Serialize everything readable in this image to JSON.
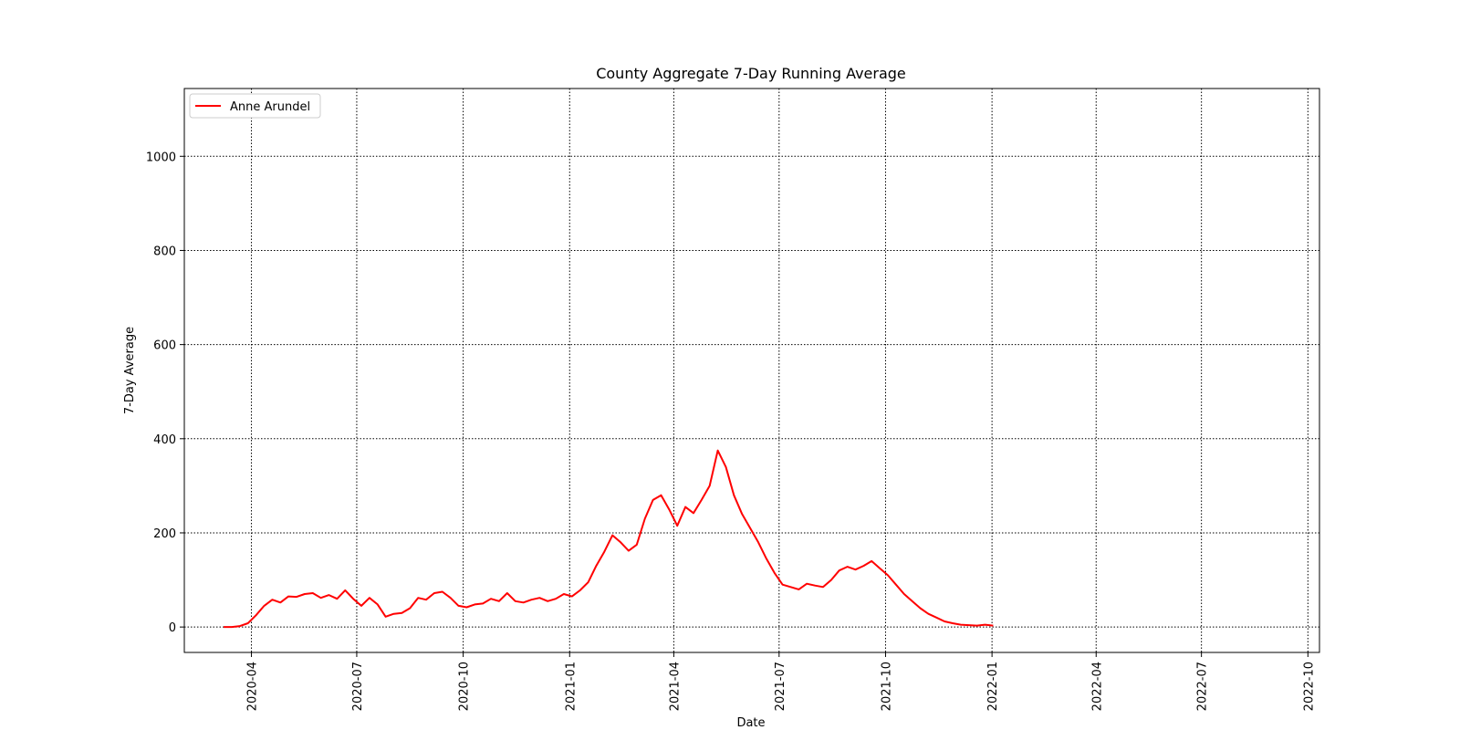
{
  "chart_data": {
    "type": "line",
    "title": "County Aggregate 7-Day Running Average",
    "xlabel": "Date",
    "ylabel": "7-Day Average",
    "xlim": [
      "2020-02-03",
      "2022-10-11"
    ],
    "ylim": [
      -54,
      1144
    ],
    "x_ticks": [
      "2020-04",
      "2020-07",
      "2020-10",
      "2021-01",
      "2021-04",
      "2021-07",
      "2021-10",
      "2022-01",
      "2022-04",
      "2022-07",
      "2022-10"
    ],
    "y_ticks": [
      0,
      200,
      400,
      600,
      800,
      1000
    ],
    "grid": true,
    "legend_position": "upper-left",
    "line_color": "#ff0000",
    "series": [
      {
        "name": "Anne Arundel",
        "color": "#ff0000",
        "points": [
          [
            "2020-03-08",
            0
          ],
          [
            "2020-03-15",
            0
          ],
          [
            "2020-03-22",
            2
          ],
          [
            "2020-03-29",
            8
          ],
          [
            "2020-04-05",
            25
          ],
          [
            "2020-04-12",
            45
          ],
          [
            "2020-04-19",
            58
          ],
          [
            "2020-04-26",
            52
          ],
          [
            "2020-05-03",
            65
          ],
          [
            "2020-05-10",
            64
          ],
          [
            "2020-05-17",
            70
          ],
          [
            "2020-05-24",
            72
          ],
          [
            "2020-05-31",
            62
          ],
          [
            "2020-06-07",
            68
          ],
          [
            "2020-06-14",
            60
          ],
          [
            "2020-06-21",
            78
          ],
          [
            "2020-06-28",
            60
          ],
          [
            "2020-07-05",
            45
          ],
          [
            "2020-07-12",
            62
          ],
          [
            "2020-07-19",
            48
          ],
          [
            "2020-07-26",
            22
          ],
          [
            "2020-08-02",
            28
          ],
          [
            "2020-08-09",
            30
          ],
          [
            "2020-08-16",
            40
          ],
          [
            "2020-08-23",
            62
          ],
          [
            "2020-08-30",
            58
          ],
          [
            "2020-09-06",
            72
          ],
          [
            "2020-09-13",
            75
          ],
          [
            "2020-09-20",
            62
          ],
          [
            "2020-09-27",
            45
          ],
          [
            "2020-10-04",
            42
          ],
          [
            "2020-10-11",
            48
          ],
          [
            "2020-10-18",
            50
          ],
          [
            "2020-10-25",
            60
          ],
          [
            "2020-11-01",
            55
          ],
          [
            "2020-11-08",
            72
          ],
          [
            "2020-11-15",
            55
          ],
          [
            "2020-11-22",
            52
          ],
          [
            "2020-11-29",
            58
          ],
          [
            "2020-12-06",
            62
          ],
          [
            "2020-12-13",
            55
          ],
          [
            "2020-12-20",
            60
          ],
          [
            "2020-12-27",
            70
          ],
          [
            "2021-01-03",
            65
          ],
          [
            "2021-01-10",
            78
          ],
          [
            "2021-01-17",
            95
          ],
          [
            "2021-01-24",
            130
          ],
          [
            "2021-01-31",
            160
          ],
          [
            "2021-02-07",
            195
          ],
          [
            "2021-02-14",
            180
          ],
          [
            "2021-02-21",
            162
          ],
          [
            "2021-02-28",
            175
          ],
          [
            "2021-03-07",
            230
          ],
          [
            "2021-03-14",
            270
          ],
          [
            "2021-03-21",
            280
          ],
          [
            "2021-03-28",
            250
          ],
          [
            "2021-04-04",
            215
          ],
          [
            "2021-04-11",
            255
          ],
          [
            "2021-04-18",
            242
          ],
          [
            "2021-04-25",
            270
          ],
          [
            "2021-05-02",
            300
          ],
          [
            "2021-05-09",
            375
          ],
          [
            "2021-05-16",
            340
          ],
          [
            "2021-05-23",
            280
          ],
          [
            "2021-05-30",
            240
          ],
          [
            "2021-06-06",
            210
          ],
          [
            "2021-06-13",
            180
          ],
          [
            "2021-06-20",
            145
          ],
          [
            "2021-06-27",
            115
          ],
          [
            "2021-07-04",
            90
          ],
          [
            "2021-07-11",
            85
          ],
          [
            "2021-07-18",
            80
          ],
          [
            "2021-07-25",
            92
          ],
          [
            "2021-08-01",
            88
          ],
          [
            "2021-08-08",
            85
          ],
          [
            "2021-08-15",
            100
          ],
          [
            "2021-08-22",
            120
          ],
          [
            "2021-08-29",
            128
          ],
          [
            "2021-09-05",
            122
          ],
          [
            "2021-09-12",
            130
          ],
          [
            "2021-09-19",
            140
          ],
          [
            "2021-09-26",
            125
          ],
          [
            "2021-10-03",
            110
          ],
          [
            "2021-10-10",
            90
          ],
          [
            "2021-10-17",
            70
          ],
          [
            "2021-10-24",
            55
          ],
          [
            "2021-10-31",
            40
          ],
          [
            "2021-11-07",
            28
          ],
          [
            "2021-11-14",
            20
          ],
          [
            "2021-11-21",
            12
          ],
          [
            "2021-11-28",
            8
          ],
          [
            "2021-12-05",
            5
          ],
          [
            "2021-12-12",
            4
          ],
          [
            "2021-12-19",
            3
          ],
          [
            "2021-12-26",
            5
          ],
          [
            "2022-01-02",
            3
          ]
        ]
      }
    ]
  },
  "legend": {
    "label": "Anne Arundel"
  }
}
